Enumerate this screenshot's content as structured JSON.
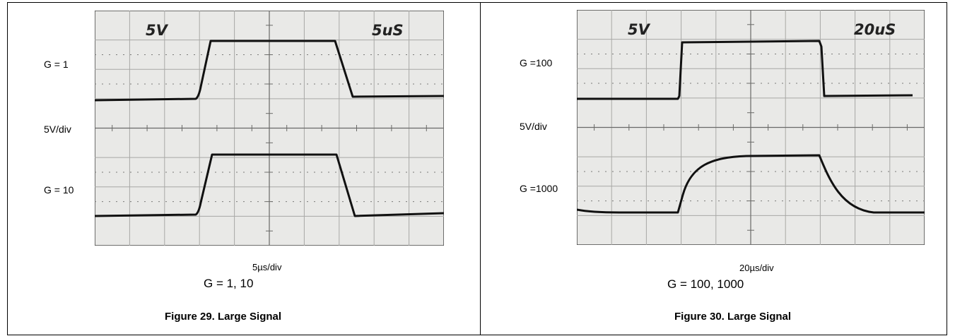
{
  "figures": [
    {
      "screen_volts": "5V",
      "screen_time": "5uS",
      "trace_labels": [
        "G = 1",
        "5V/div",
        "G = 10"
      ],
      "timebase": "5µs/div",
      "gain_caption": "G = 1, 10",
      "title": "Figure 29. Large Signal"
    },
    {
      "screen_volts": "5V",
      "screen_time": "20uS",
      "trace_labels": [
        "G =100",
        "5V/div",
        "G =1000"
      ],
      "timebase": "20µs/div",
      "gain_caption": "G = 100, 1000",
      "title": "Figure 30. Large Signal"
    }
  ],
  "colors": {
    "screen_bg": "#e9e9e7",
    "grid": "#a8a8a6",
    "trace": "#111111"
  }
}
